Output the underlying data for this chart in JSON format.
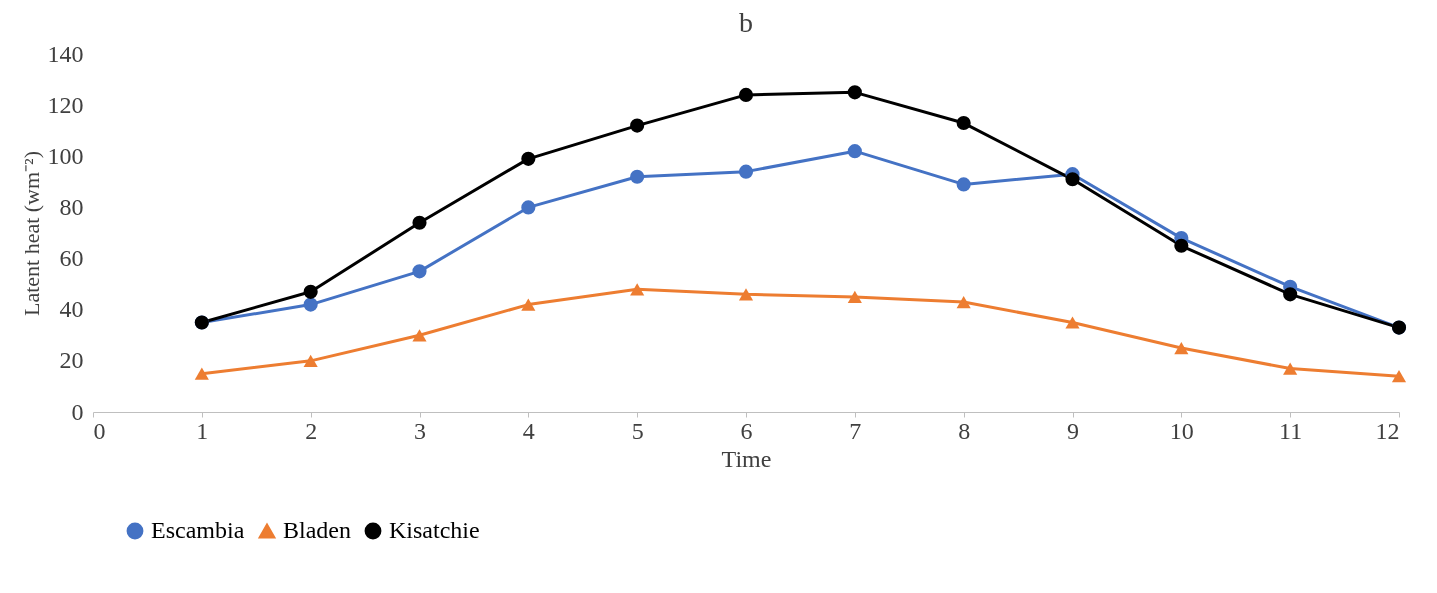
{
  "chart_data": {
    "type": "line",
    "title": "b",
    "xlabel": "Time",
    "ylabel": "Latent heat (wm⁻²)",
    "x": [
      1,
      2,
      3,
      4,
      5,
      6,
      7,
      8,
      9,
      10,
      11,
      12
    ],
    "series": [
      {
        "name": "Escambia",
        "color": "#4472c4",
        "marker": "circle",
        "values": [
          35,
          42,
          55,
          80,
          92,
          94,
          102,
          89,
          93,
          68,
          49,
          33
        ]
      },
      {
        "name": "Bladen",
        "color": "#ed7d31",
        "marker": "triangle",
        "values": [
          15,
          20,
          30,
          42,
          48,
          46,
          45,
          43,
          35,
          25,
          17,
          14
        ]
      },
      {
        "name": "Kisatchie",
        "color": "#000000",
        "marker": "circle",
        "values": [
          35,
          47,
          74,
          99,
          112,
          124,
          125,
          113,
          91,
          65,
          46,
          33
        ]
      }
    ],
    "xlim": [
      0,
      12
    ],
    "xticks": [
      0,
      1,
      2,
      3,
      4,
      5,
      6,
      7,
      8,
      9,
      10,
      11,
      12
    ],
    "ylim": [
      0,
      140
    ],
    "yticks": [
      0,
      20,
      40,
      60,
      80,
      100,
      120,
      140
    ],
    "grid": false,
    "legend": "bottom",
    "line_style": "solid"
  }
}
